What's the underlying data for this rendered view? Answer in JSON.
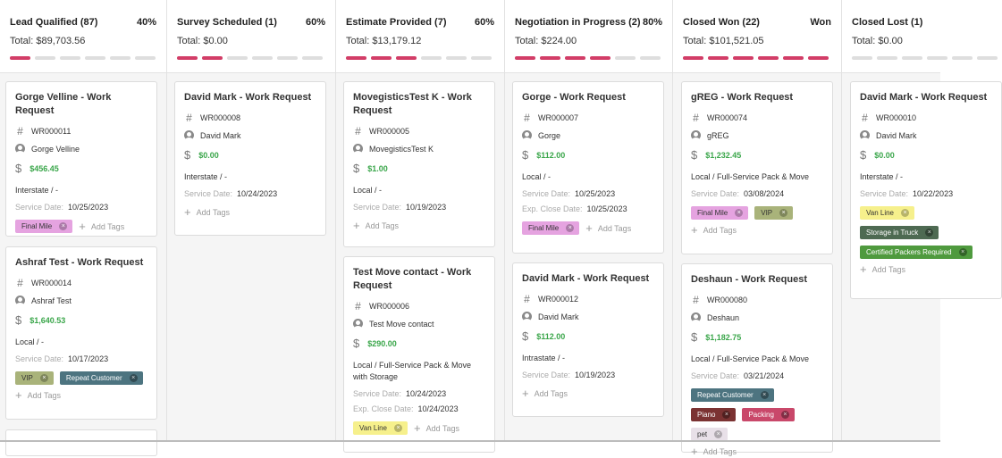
{
  "columns": [
    {
      "title": "Lead Qualified (87)",
      "pct": "40%",
      "total": "Total:  $89,703.56",
      "bars": [
        1,
        0,
        0,
        0,
        0,
        0
      ]
    },
    {
      "title": "Survey Scheduled (1)",
      "pct": "60%",
      "total": "Total:  $0.00",
      "bars": [
        1,
        1,
        0,
        0,
        0,
        0
      ]
    },
    {
      "title": "Estimate Provided (7)",
      "pct": "60%",
      "total": "Total:  $13,179.12",
      "bars": [
        1,
        1,
        1,
        0,
        0,
        0
      ]
    },
    {
      "title": "Negotiation in Progress (2)",
      "pct": "80%",
      "total": "Total:  $224.00",
      "bars": [
        1,
        1,
        1,
        1,
        0,
        0
      ]
    },
    {
      "title": "Closed Won (22)",
      "pct": "Won",
      "total": "Total:  $101,521.05",
      "bars": [
        1,
        1,
        1,
        1,
        1,
        1
      ]
    },
    {
      "title": "Closed Lost (1)",
      "pct": "",
      "total": "Total:  $0.00",
      "bars": [
        0,
        0,
        0,
        0,
        0,
        0
      ]
    }
  ],
  "labels": {
    "service_date": "Service Date:",
    "exp_close_date": "Exp. Close Date:",
    "add_tags": "Add Tags"
  },
  "cards": {
    "c1": {
      "title": "Gorge Velline - Work Request",
      "id": "WR000011",
      "contact": "Gorge Velline",
      "amount": "$456.45",
      "kind": "Interstate / -",
      "service_date": "10/25/2023",
      "tags": [
        "Final Mile"
      ]
    },
    "c2": {
      "title": "Ashraf Test - Work Request",
      "id": "WR000014",
      "contact": "Ashraf Test",
      "amount": "$1,640.53",
      "kind": "Local / -",
      "service_date": "10/17/2023",
      "tags": [
        "VIP",
        "Repeat Customer"
      ]
    },
    "c3": {
      "title": "David Mark - Work Request",
      "id": "WR000008",
      "contact": "David Mark",
      "amount": "$0.00",
      "kind": "Interstate / -",
      "service_date": "10/24/2023"
    },
    "c4": {
      "title": "MovegisticsTest K - Work Request",
      "id": "WR000005",
      "contact": "MovegisticsTest K",
      "amount": "$1.00",
      "kind": "Local / -",
      "service_date": "10/19/2023"
    },
    "c5": {
      "title": "Test Move contact - Work Request",
      "id": "WR000006",
      "contact": "Test Move contact",
      "amount": "$290.00",
      "kind": "Local / Full-Service Pack & Move with Storage",
      "service_date": "10/24/2023",
      "exp_close_date": "10/24/2023",
      "tags": [
        "Van Line"
      ]
    },
    "c6": {
      "title": "Gorge - Work Request",
      "id": "WR000007",
      "contact": "Gorge",
      "amount": "$112.00",
      "kind": "Local / -",
      "service_date": "10/25/2023",
      "exp_close_date": "10/25/2023",
      "tags": [
        "Final Mile"
      ]
    },
    "c7": {
      "title": "David Mark - Work Request",
      "id": "WR000012",
      "contact": "David Mark",
      "amount": "$112.00",
      "kind": "Intrastate / -",
      "service_date": "10/19/2023"
    },
    "c8": {
      "title": "gREG - Work Request",
      "id": "WR000074",
      "contact": "gREG",
      "amount": "$1,232.45",
      "kind": "Local / Full-Service Pack & Move",
      "service_date": "03/08/2024",
      "tags": [
        "Final Mile",
        "VIP"
      ]
    },
    "c9": {
      "title": "Deshaun - Work Request",
      "id": "WR000080",
      "contact": "Deshaun",
      "amount": "$1,182.75",
      "kind": "Local / Full-Service Pack & Move",
      "service_date": "03/21/2024",
      "tags": [
        "Repeat Customer",
        "Piano",
        "Packing",
        "pet"
      ]
    },
    "c10": {
      "title": "David Mark - Work Request",
      "id": "WR000010",
      "contact": "David Mark",
      "amount": "$0.00",
      "kind": "Interstate / -",
      "service_date": "10/22/2023",
      "tags": [
        "Van Line",
        "Storage in Truck",
        "Certified Packers Required"
      ]
    }
  },
  "tag_colors": {
    "Final Mile": {
      "bg": "#e5a3e0",
      "fg": "#333333"
    },
    "VIP": {
      "bg": "#a9b37a",
      "fg": "#333333"
    },
    "Repeat Customer": {
      "bg": "#4d7480",
      "fg": "#ffffff"
    },
    "Van Line": {
      "bg": "#f6f08c",
      "fg": "#333333"
    },
    "Piano": {
      "bg": "#7b3232",
      "fg": "#ffffff"
    },
    "Packing": {
      "bg": "#c9486a",
      "fg": "#ffffff"
    },
    "pet": {
      "bg": "#e8e0e8",
      "fg": "#333333"
    },
    "Storage in Truck": {
      "bg": "#4e6a52",
      "fg": "#ffffff"
    },
    "Certified Packers Required": {
      "bg": "#4f9a3e",
      "fg": "#ffffff"
    }
  },
  "colors": {
    "accent": "#d23d67",
    "amount": "#3aa64a"
  }
}
